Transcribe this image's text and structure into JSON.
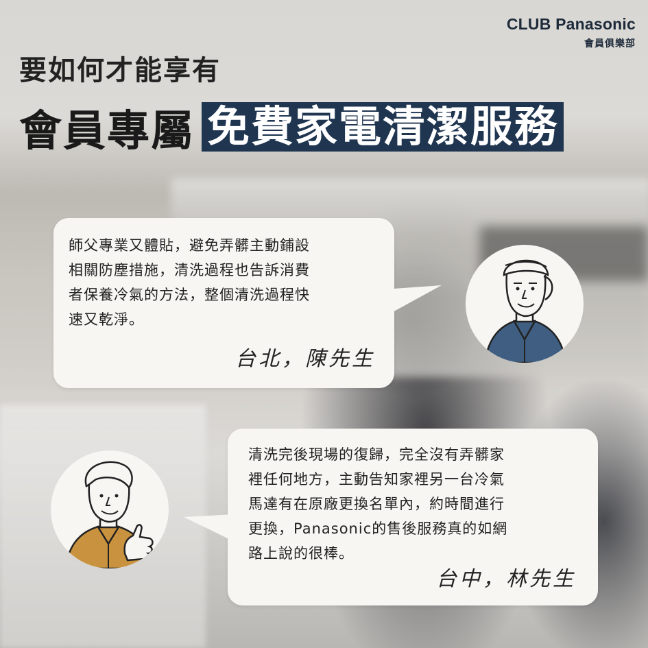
{
  "brand": {
    "name": "CLUB Panasonic",
    "subtitle": "會員俱樂部"
  },
  "headline": {
    "line1": "要如何才能享有",
    "line2_plain": "會員專屬",
    "line2_highlight": "免費家電清潔服務"
  },
  "testimonials": [
    {
      "text_lines": [
        "師父專業又體貼，避免弄髒主動鋪設",
        "相關防塵措施，清洗過程也告訴消費",
        "者保養冷氣的方法，整個清洗過程快",
        "速又乾淨。"
      ],
      "signature": "台北，陳先生",
      "avatar_icon": "technician-avatar-icon"
    },
    {
      "text_lines": [
        "清洗完後現場的復歸，完全沒有弄髒家",
        "裡任何地方，主動告知家裡另一台冷氣",
        "馬達有在原廠更換名單內，約時間進行",
        "更換，Panasonic的售後服務真的如網",
        "路上說的很棒。"
      ],
      "signature": "台中，林先生",
      "avatar_icon": "customer-thumbs-up-avatar-icon"
    }
  ],
  "colors": {
    "highlight_bg": "#1f3550",
    "brand_text": "#1d2a3a",
    "bubble_bg": "#f7f6f3",
    "shirt_blue": "#3f5e82",
    "shirt_tan": "#c9923f"
  }
}
